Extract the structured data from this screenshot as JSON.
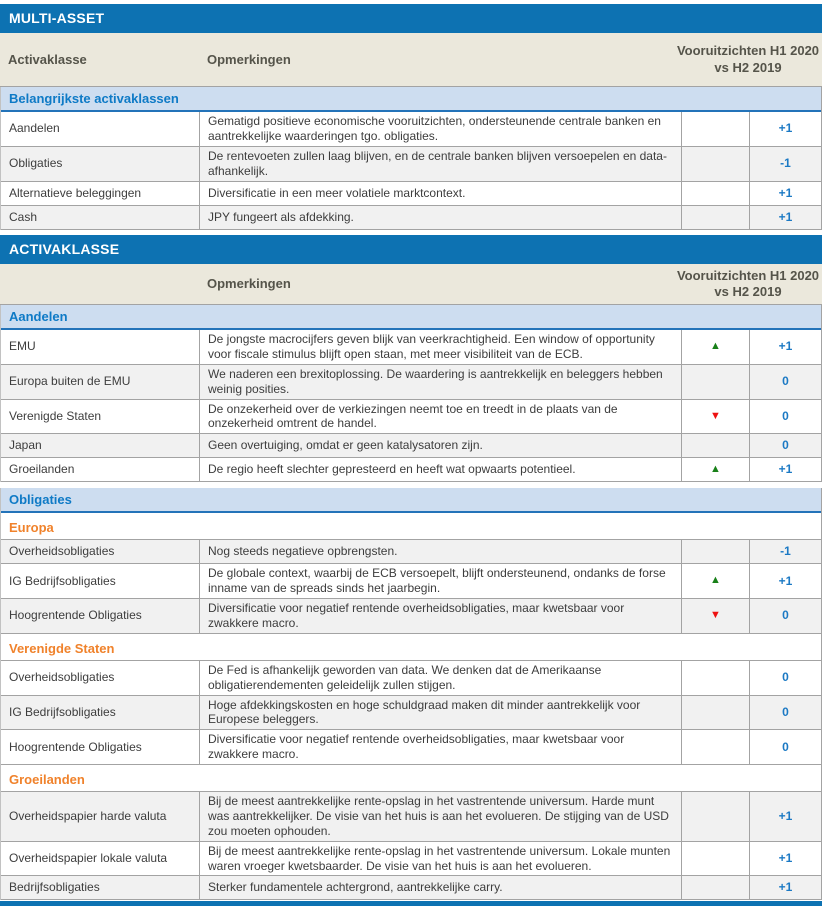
{
  "colors": {
    "bar-blue": "#0d72b2",
    "section-bg": "#cdddf0",
    "section-text": "#0e7ac6",
    "section-border": "#2373b9",
    "beige-bg": "#ebe8dc",
    "beige-text": "#55544a",
    "orange": "#f0822b",
    "row-alt": "#f1f1f1",
    "border-gray": "#a3a3a3",
    "score-blue": "#1b79c4",
    "up-green": "#188018",
    "down-red": "#ee1111",
    "text": "#3d3d3d"
  },
  "icons": {
    "up": "▲",
    "down": "▼"
  },
  "tables": [
    {
      "title": "MULTI-ASSET",
      "header": {
        "asset_label": "Activaklasse",
        "comments_label": "Opmerkingen",
        "outlook_label": "Vooruitzichten H1 2020 vs H2 2019"
      },
      "rows": [
        {
          "kind": "section",
          "label": "Belangrijkste activaklassen"
        },
        {
          "kind": "data",
          "shade": false,
          "label": "Aandelen",
          "comment": "Gematigd positieve economische vooruitzichten, ondersteunende centrale banken en aantrekkelijke waarderingen tgo. obligaties.",
          "arrow": "",
          "score": "+1"
        },
        {
          "kind": "data",
          "shade": true,
          "label": "Obligaties",
          "comment": "De rentevoeten zullen laag blijven, en de centrale banken blijven versoepelen en data-afhankelijk.",
          "arrow": "",
          "score": "-1"
        },
        {
          "kind": "data",
          "shade": false,
          "label": "Alternatieve beleggingen",
          "comment": "Diversificatie in een meer volatiele marktcontext.",
          "arrow": "",
          "score": "+1"
        },
        {
          "kind": "data",
          "shade": true,
          "label": "Cash",
          "comment": "JPY fungeert als afdekking.",
          "arrow": "",
          "score": "+1"
        }
      ]
    },
    {
      "title": "ACTIVAKLASSE",
      "header": {
        "asset_label": "",
        "comments_label": "Opmerkingen",
        "outlook_label": "Vooruitzichten H1 2020 vs H2 2019"
      },
      "rows": [
        {
          "kind": "section",
          "label": "Aandelen"
        },
        {
          "kind": "data",
          "shade": false,
          "label": "EMU",
          "comment": "De jongste macrocijfers geven blijk van veerkrachtigheid. Een window of opportunity voor fiscale stimulus blijft open staan, met meer visibiliteit van de ECB.",
          "arrow": "up",
          "score": "+1"
        },
        {
          "kind": "data",
          "shade": true,
          "label": "Europa buiten de EMU",
          "comment": "We naderen een brexitoplossing. De waardering is aantrekkelijk en beleggers hebben weinig posities.",
          "arrow": "",
          "score": "0"
        },
        {
          "kind": "data",
          "shade": false,
          "label": "Verenigde Staten",
          "comment": "De onzekerheid over de verkiezingen neemt toe en treedt in de plaats van de onzekerheid omtrent de handel.",
          "arrow": "down",
          "score": "0"
        },
        {
          "kind": "data",
          "shade": true,
          "label": "Japan",
          "comment": "Geen overtuiging, omdat er geen katalysatoren zijn.",
          "arrow": "",
          "score": "0"
        },
        {
          "kind": "data",
          "shade": false,
          "label": "Groeilanden",
          "comment": "De regio heeft slechter gepresteerd en heeft wat opwaarts potentieel.",
          "arrow": "up",
          "score": "+1"
        },
        {
          "kind": "gap"
        },
        {
          "kind": "section",
          "label": "Obligaties"
        },
        {
          "kind": "subsection",
          "label": "Europa"
        },
        {
          "kind": "data",
          "shade": true,
          "label": "Overheidsobligaties",
          "comment": "Nog steeds negatieve opbrengsten.",
          "arrow": "",
          "score": "-1"
        },
        {
          "kind": "data",
          "shade": false,
          "label": "IG Bedrijfsobligaties",
          "comment": "De globale context, waarbij de ECB versoepelt, blijft ondersteunend, ondanks de forse inname van de spreads sinds het jaarbegin.",
          "arrow": "up",
          "score": "+1"
        },
        {
          "kind": "data",
          "shade": true,
          "label": "Hoogrentende Obligaties",
          "comment": "Diversificatie voor negatief rentende overheidsobligaties, maar kwetsbaar voor zwakkere macro.",
          "arrow": "down",
          "score": "0"
        },
        {
          "kind": "subsection",
          "label": "Verenigde Staten"
        },
        {
          "kind": "data",
          "shade": false,
          "label": "Overheidsobligaties",
          "comment": "De Fed is afhankelijk geworden van data. We denken dat de Amerikaanse obligatierendementen geleidelijk zullen stijgen.",
          "arrow": "",
          "score": "0"
        },
        {
          "kind": "data",
          "shade": true,
          "label": "IG Bedrijfsobligaties",
          "comment": "Hoge afdekkingskosten en hoge schuldgraad maken dit minder aantrekkelijk voor Europese beleggers.",
          "arrow": "",
          "score": "0"
        },
        {
          "kind": "data",
          "shade": false,
          "label": "Hoogrentende Obligaties",
          "comment": "Diversificatie voor negatief rentende overheidsobligaties, maar kwetsbaar voor zwakkere macro.",
          "arrow": "",
          "score": "0"
        },
        {
          "kind": "subsection",
          "label": "Groeilanden"
        },
        {
          "kind": "data",
          "shade": true,
          "label": "Overheidspapier harde valuta",
          "comment": "Bij de meest aantrekkelijke rente-opslag in het vastrentende universum. Harde munt was aantrekkelijker. De visie van het huis is aan het evolueren. De stijging van de USD zou moeten ophouden.",
          "arrow": "",
          "score": "+1"
        },
        {
          "kind": "data",
          "shade": false,
          "label": "Overheidspapier lokale valuta",
          "comment": "Bij de meest aantrekkelijke rente-opslag in het vastrentende universum. Lokale munten waren vroeger kwetsbaarder. De visie van het huis is aan het evolueren.",
          "arrow": "",
          "score": "+1"
        },
        {
          "kind": "data",
          "shade": true,
          "label": "Bedrijfsobligaties",
          "comment": "Sterker fundamentele achtergrond, aantrekkelijke carry.",
          "arrow": "",
          "score": "+1"
        }
      ]
    }
  ]
}
